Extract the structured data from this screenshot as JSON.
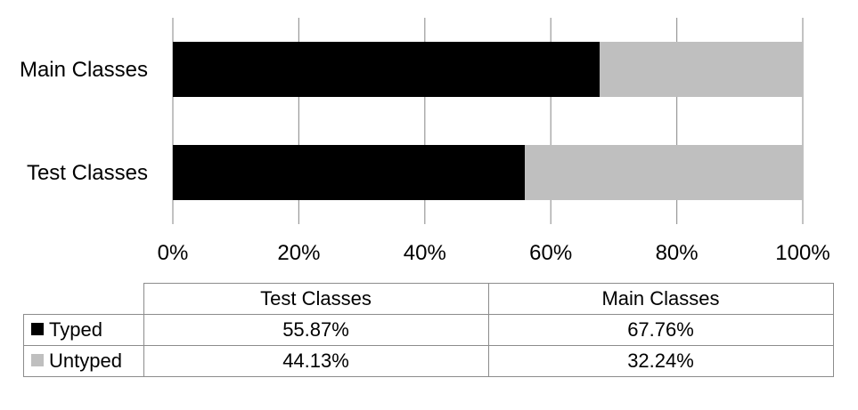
{
  "chart_data": {
    "type": "bar",
    "orientation": "horizontal",
    "stacked": true,
    "normalized": true,
    "categories": [
      "Main Classes",
      "Test Classes"
    ],
    "series": [
      {
        "name": "Typed",
        "color": "#000000",
        "values": [
          67.76,
          55.87
        ]
      },
      {
        "name": "Untyped",
        "color": "#bfbfbf",
        "values": [
          32.24,
          44.13
        ]
      }
    ],
    "xlim": [
      0,
      100
    ],
    "xticks": [
      0,
      20,
      40,
      60,
      80,
      100
    ],
    "xtick_labels": [
      "0%",
      "20%",
      "40%",
      "60%",
      "80%",
      "100%"
    ],
    "grid": true,
    "title": "",
    "xlabel": "",
    "ylabel": "",
    "data_table": {
      "columns": [
        "Test Classes",
        "Main Classes"
      ],
      "rows": [
        {
          "label": "Typed",
          "color": "#000000",
          "values": [
            "55.87%",
            "67.76%"
          ]
        },
        {
          "label": "Untyped",
          "color": "#bfbfbf",
          "values": [
            "44.13%",
            "32.24%"
          ]
        }
      ]
    }
  }
}
